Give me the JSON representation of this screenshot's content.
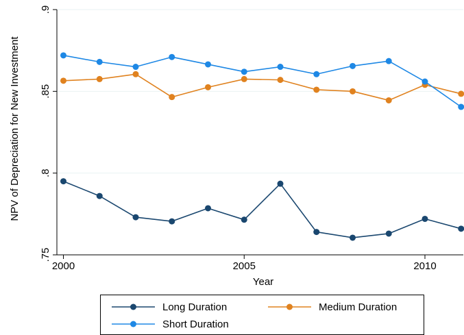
{
  "chart_data": {
    "type": "line",
    "title": "",
    "xlabel": "Year",
    "ylabel": "NPV of Depreciation for New Investment",
    "xlim": [
      2000,
      2011
    ],
    "ylim": [
      0.75,
      0.9
    ],
    "xticks": [
      2000,
      2005,
      2010
    ],
    "yticks": [
      0.75,
      0.8,
      0.85,
      0.9
    ],
    "ytick_labels": [
      ".75",
      ".8",
      ".85",
      ".9"
    ],
    "grid": "horizontal",
    "legend_position": "bottom",
    "x": [
      2000,
      2001,
      2002,
      2003,
      2004,
      2005,
      2006,
      2007,
      2008,
      2009,
      2010,
      2011
    ],
    "series": [
      {
        "name": "Long Duration",
        "color": "#1a476f",
        "values": [
          0.795,
          0.786,
          0.773,
          0.7705,
          0.7785,
          0.7715,
          0.7935,
          0.764,
          0.7605,
          0.763,
          0.772,
          0.766
        ]
      },
      {
        "name": "Medium Duration",
        "color": "#e0821f",
        "values": [
          0.8565,
          0.8575,
          0.8605,
          0.8465,
          0.8525,
          0.8575,
          0.857,
          0.851,
          0.85,
          0.8445,
          0.854,
          0.8485
        ]
      },
      {
        "name": "Short Duration",
        "color": "#1e88e5",
        "values": [
          0.872,
          0.868,
          0.865,
          0.871,
          0.8665,
          0.862,
          0.865,
          0.8605,
          0.8655,
          0.8685,
          0.856,
          0.8405
        ]
      }
    ]
  }
}
